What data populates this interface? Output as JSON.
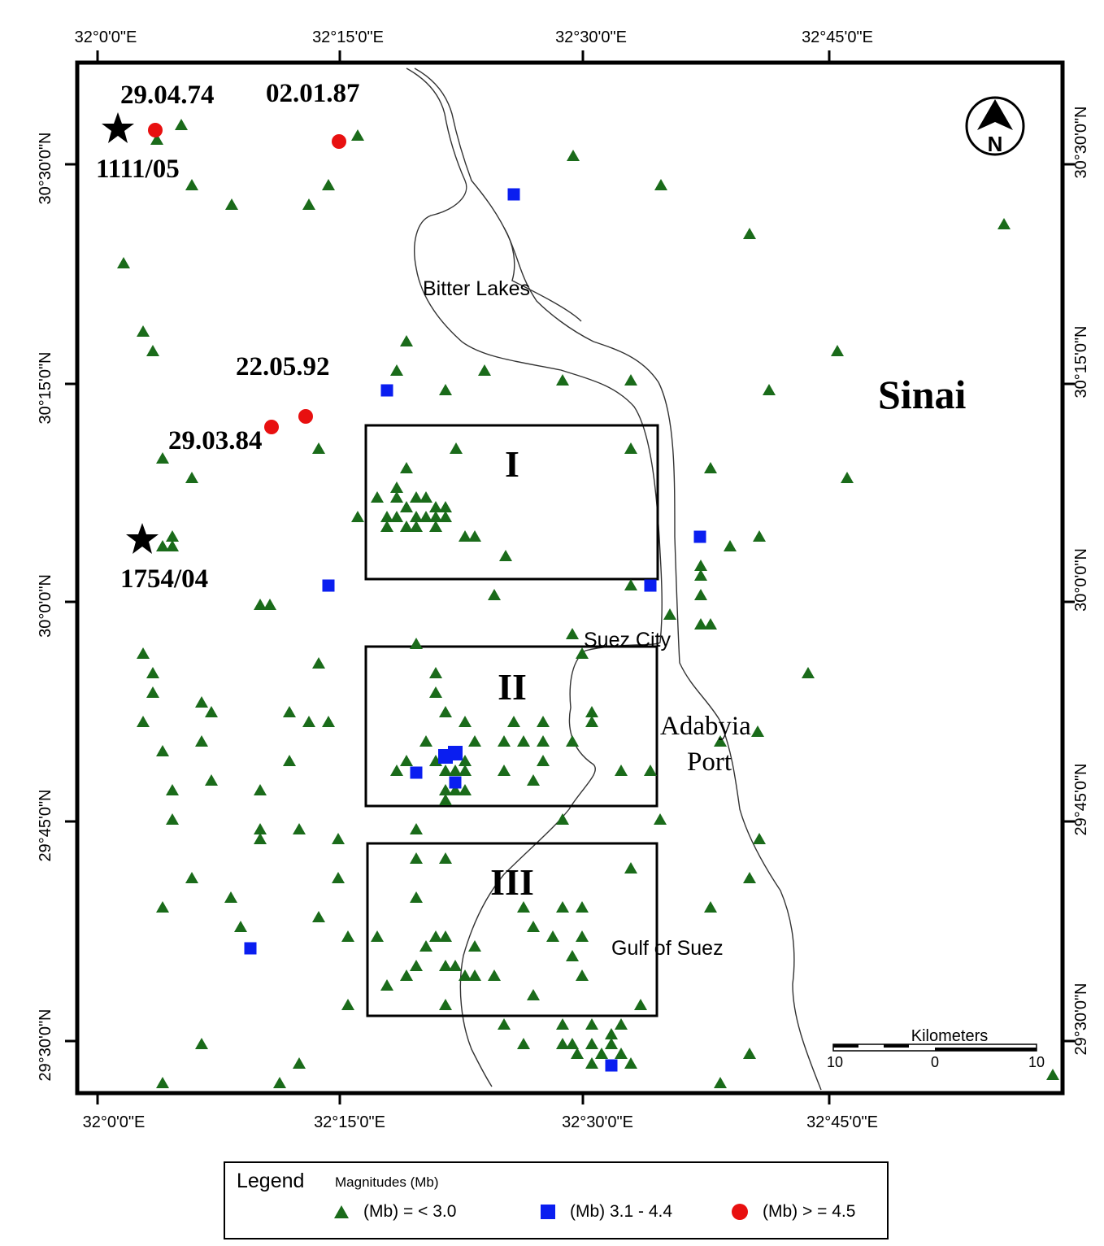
{
  "map": {
    "top_ticks": [
      "32°0'0\"E",
      "32°15'0\"E",
      "32°30'0\"E",
      "32°45'0\"E"
    ],
    "bottom_ticks": [
      "32°0'0\"E",
      "32°15'0\"E",
      "32°30'0\"E",
      "32°45'0\"E"
    ],
    "left_ticks": [
      "30°30'0\"N",
      "30°15'0\"N",
      "30°0'0\"N",
      "29°45'0\"N",
      "29°30'0\"N"
    ],
    "right_ticks": [
      "30°30'0\"N",
      "30°15'0\"N",
      "30°0'0\"N",
      "29°45'0\"N",
      "29°30'0\"N"
    ],
    "place_labels": {
      "bitter_lakes": "Bitter Lakes",
      "sinai": "Sinai",
      "suez_city": "Suez City",
      "adabyia_line1": "Adabyia",
      "adabyia_line2": "Port",
      "gulf_of_suez": "Gulf of Suez"
    },
    "zones": [
      "I",
      "II",
      "III"
    ],
    "historical_events": [
      "1111/05",
      "1754/04"
    ],
    "event_dates": [
      "29.04.74",
      "02.01.87",
      "22.05.92",
      "29.03.84"
    ],
    "north_arrow": "N",
    "scale_bar": {
      "title": "Kilometers",
      "labels": [
        "10",
        "0",
        "10"
      ]
    }
  },
  "legend": {
    "title": "Legend",
    "subtitle": "Magnitudes (Mb)",
    "items": [
      {
        "label": "(Mb) = < 3.0",
        "symbol": "triangle-icon",
        "color": "#1a6b1a"
      },
      {
        "label": "(Mb) 3.1 - 4.4",
        "symbol": "square-icon",
        "color": "#0a1ef0"
      },
      {
        "label": "(Mb) > = 4.5",
        "symbol": "circle-icon",
        "color": "#e81010"
      }
    ]
  }
}
